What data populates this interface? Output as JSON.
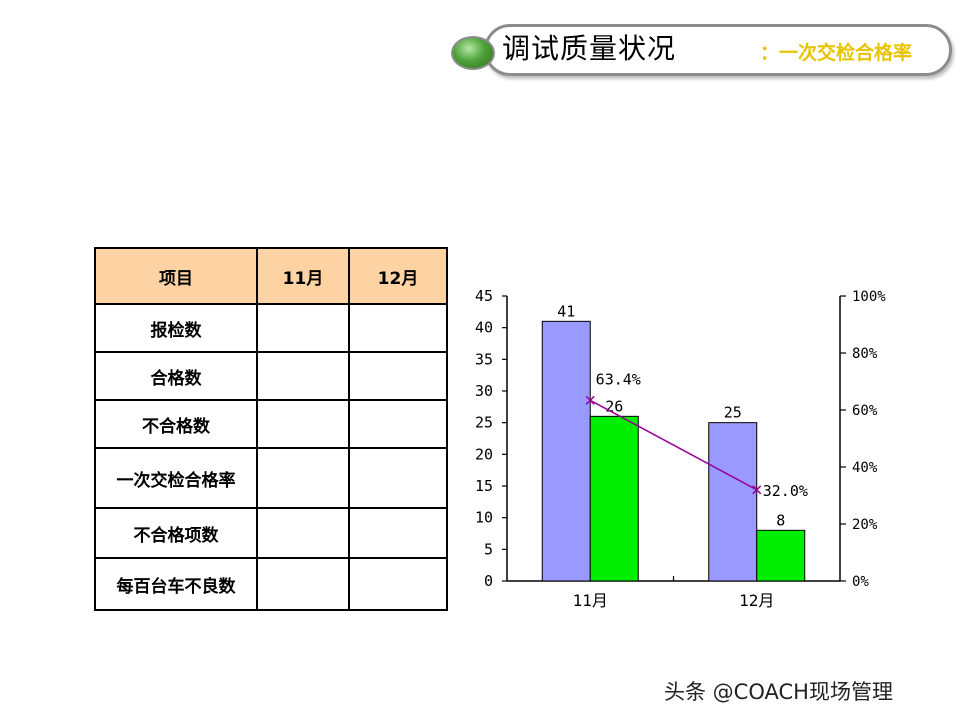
{
  "title": {
    "main": "调试质量状况",
    "sub": "：一次交检合格率"
  },
  "table": {
    "headers": [
      "项目",
      "11月",
      "12月"
    ],
    "rows": [
      {
        "label": "报检数",
        "v11": "",
        "v12": ""
      },
      {
        "label": "合格数",
        "v11": "",
        "v12": ""
      },
      {
        "label": "不合格数",
        "v11": "",
        "v12": ""
      },
      {
        "label": "一次交检合格率",
        "v11": "",
        "v12": ""
      },
      {
        "label": "不合格项数",
        "v11": "",
        "v12": ""
      },
      {
        "label": "每百台车不良数",
        "v11": "",
        "v12": ""
      }
    ]
  },
  "chart_data": {
    "type": "bar",
    "categories": [
      "11月",
      "12月"
    ],
    "series": [
      {
        "values": [
          41,
          25
        ],
        "color": "#9999ff",
        "labels": [
          "41",
          "25"
        ]
      },
      {
        "values": [
          26,
          8
        ],
        "color": "#00ee00",
        "labels": [
          "26",
          "8"
        ]
      }
    ],
    "line": {
      "values": [
        63.4,
        32.0
      ],
      "labels": [
        "63.4%",
        "32.0%"
      ],
      "color": "#990099"
    },
    "ylim": [
      0,
      45
    ],
    "yticks": [
      "0",
      "5",
      "10",
      "15",
      "20",
      "25",
      "30",
      "35",
      "40",
      "45"
    ],
    "y2lim": [
      0,
      100
    ],
    "y2ticks": [
      "0%",
      "20%",
      "40%",
      "60%",
      "80%",
      "100%"
    ]
  },
  "watermark": "头条 @COACH现场管理"
}
